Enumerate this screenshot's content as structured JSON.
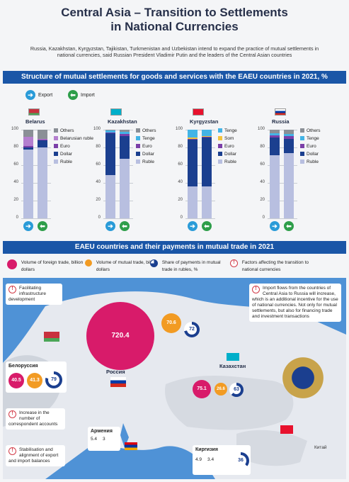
{
  "title_line1": "Central Asia – Transition to Settlements",
  "title_line2": "in National Currencies",
  "subtitle": "Russia, Kazakhstan, Kyrgyzstan, Tajikistan, Turkmenistan and Uzbekistan intend to expand the practice of mutual settlements in national currencies, said Russian President Vladimir Putin and the leaders of the Central Asian countries",
  "section1_title": "Structure of mutual settlements for goods and services with the EAEU countries in 2021, %",
  "section2_title": "EAEU countries and their payments in mutual trade in 2021",
  "flow_legend": {
    "export": "Export",
    "import": "Import"
  },
  "colors": {
    "Others": "#8a8f96",
    "Belarusian ruble": "#b47fcf",
    "Euro": "#7b3fa8",
    "Dollar": "#1b3f8f",
    "Ruble": "#b8bfe0",
    "Tenge": "#43b4e6",
    "Som": "#f3c43c"
  },
  "chart_data": [
    {
      "type": "bar",
      "country": "Belarus",
      "categories": [
        "Export",
        "Import"
      ],
      "ylim": [
        0,
        100
      ],
      "yticks": [
        0,
        20,
        40,
        60,
        80,
        100
      ],
      "series": [
        {
          "name": "Ruble",
          "values": [
            78,
            80
          ]
        },
        {
          "name": "Dollar",
          "values": [
            2,
            8
          ]
        },
        {
          "name": "Euro",
          "values": [
            2,
            1
          ]
        },
        {
          "name": "Belarusian ruble",
          "values": [
            10,
            1
          ]
        },
        {
          "name": "Others",
          "values": [
            8,
            10
          ]
        }
      ],
      "legend": [
        "Others",
        "Belarusian ruble",
        "Euro",
        "Dollar",
        "Ruble"
      ]
    },
    {
      "type": "bar",
      "country": "Kazakhstan",
      "categories": [
        "Export",
        "Import"
      ],
      "ylim": [
        0,
        100
      ],
      "yticks": [
        0,
        20,
        40,
        60,
        80,
        100
      ],
      "series": [
        {
          "name": "Ruble",
          "values": [
            49,
            67
          ]
        },
        {
          "name": "Dollar",
          "values": [
            47,
            26
          ]
        },
        {
          "name": "Euro",
          "values": [
            1,
            2
          ]
        },
        {
          "name": "Tenge",
          "values": [
            2,
            3
          ]
        },
        {
          "name": "Others",
          "values": [
            1,
            2
          ]
        }
      ],
      "legend": [
        "Others",
        "Tenge",
        "Euro",
        "Dollar",
        "Ruble"
      ]
    },
    {
      "type": "bar",
      "country": "Kyrgyzstan",
      "categories": [
        "Export",
        "Import"
      ],
      "ylim": [
        0,
        100
      ],
      "yticks": [
        0,
        20,
        40,
        60,
        80,
        100
      ],
      "series": [
        {
          "name": "Ruble",
          "values": [
            36,
            36
          ]
        },
        {
          "name": "Dollar",
          "values": [
            53,
            55
          ]
        },
        {
          "name": "Euro",
          "values": [
            1,
            1
          ]
        },
        {
          "name": "Som",
          "values": [
            1,
            1
          ]
        },
        {
          "name": "Tenge",
          "values": [
            9,
            7
          ]
        }
      ],
      "legend": [
        "Tenge",
        "Som",
        "Euro",
        "Dollar",
        "Ruble"
      ]
    },
    {
      "type": "bar",
      "country": "Russia",
      "categories": [
        "Export",
        "Import"
      ],
      "ylim": [
        0,
        100
      ],
      "yticks": [
        0,
        20,
        40,
        60,
        80,
        100
      ],
      "series": [
        {
          "name": "Ruble",
          "values": [
            71,
            74
          ]
        },
        {
          "name": "Dollar",
          "values": [
            20,
            16
          ]
        },
        {
          "name": "Euro",
          "values": [
            3,
            3
          ]
        },
        {
          "name": "Tenge",
          "values": [
            2,
            2
          ]
        },
        {
          "name": "Others",
          "values": [
            4,
            5
          ]
        }
      ],
      "legend": [
        "Others",
        "Tenge",
        "Euro",
        "Dollar",
        "Ruble"
      ]
    }
  ],
  "map_legend": {
    "foreign": "Volume of foreign trade, billion dollars",
    "mutual": "Volume of mutual trade, billion dollars",
    "share": "Share of payments in mutual trade in rubles, %",
    "factors": "Factors affecting the transition to national currencies"
  },
  "map_values": {
    "russia": {
      "name": "Россия",
      "foreign": "720.4",
      "mutual": "70.6",
      "share": "72"
    },
    "belarus": {
      "name": "Белоруссия",
      "foreign": "40.5",
      "mutual": "41.3",
      "share": "79"
    },
    "kazakhstan": {
      "name": "Казахстан",
      "foreign": "75.1",
      "mutual": "26.6",
      "share": "63"
    },
    "armenia": {
      "name": "Армения",
      "foreign": "5.4",
      "mutual": "3"
    },
    "kyrgyzstan": {
      "name": "Киргизия",
      "foreign": "4.9",
      "mutual": "3.4",
      "share": "36"
    },
    "china": "Китай"
  },
  "factors": {
    "f1": "Facilitating infrastructure development",
    "f2": "Import flows from the countries of Central Asia to Russia will increase, which is an additional incentive for the use of national currencies. Not only for mutual settlements, but also for financing trade and investment transactions",
    "f3": "Increase in the number of correspondent accounts",
    "f4": "Stabilisation and alignment of export and import balances"
  }
}
